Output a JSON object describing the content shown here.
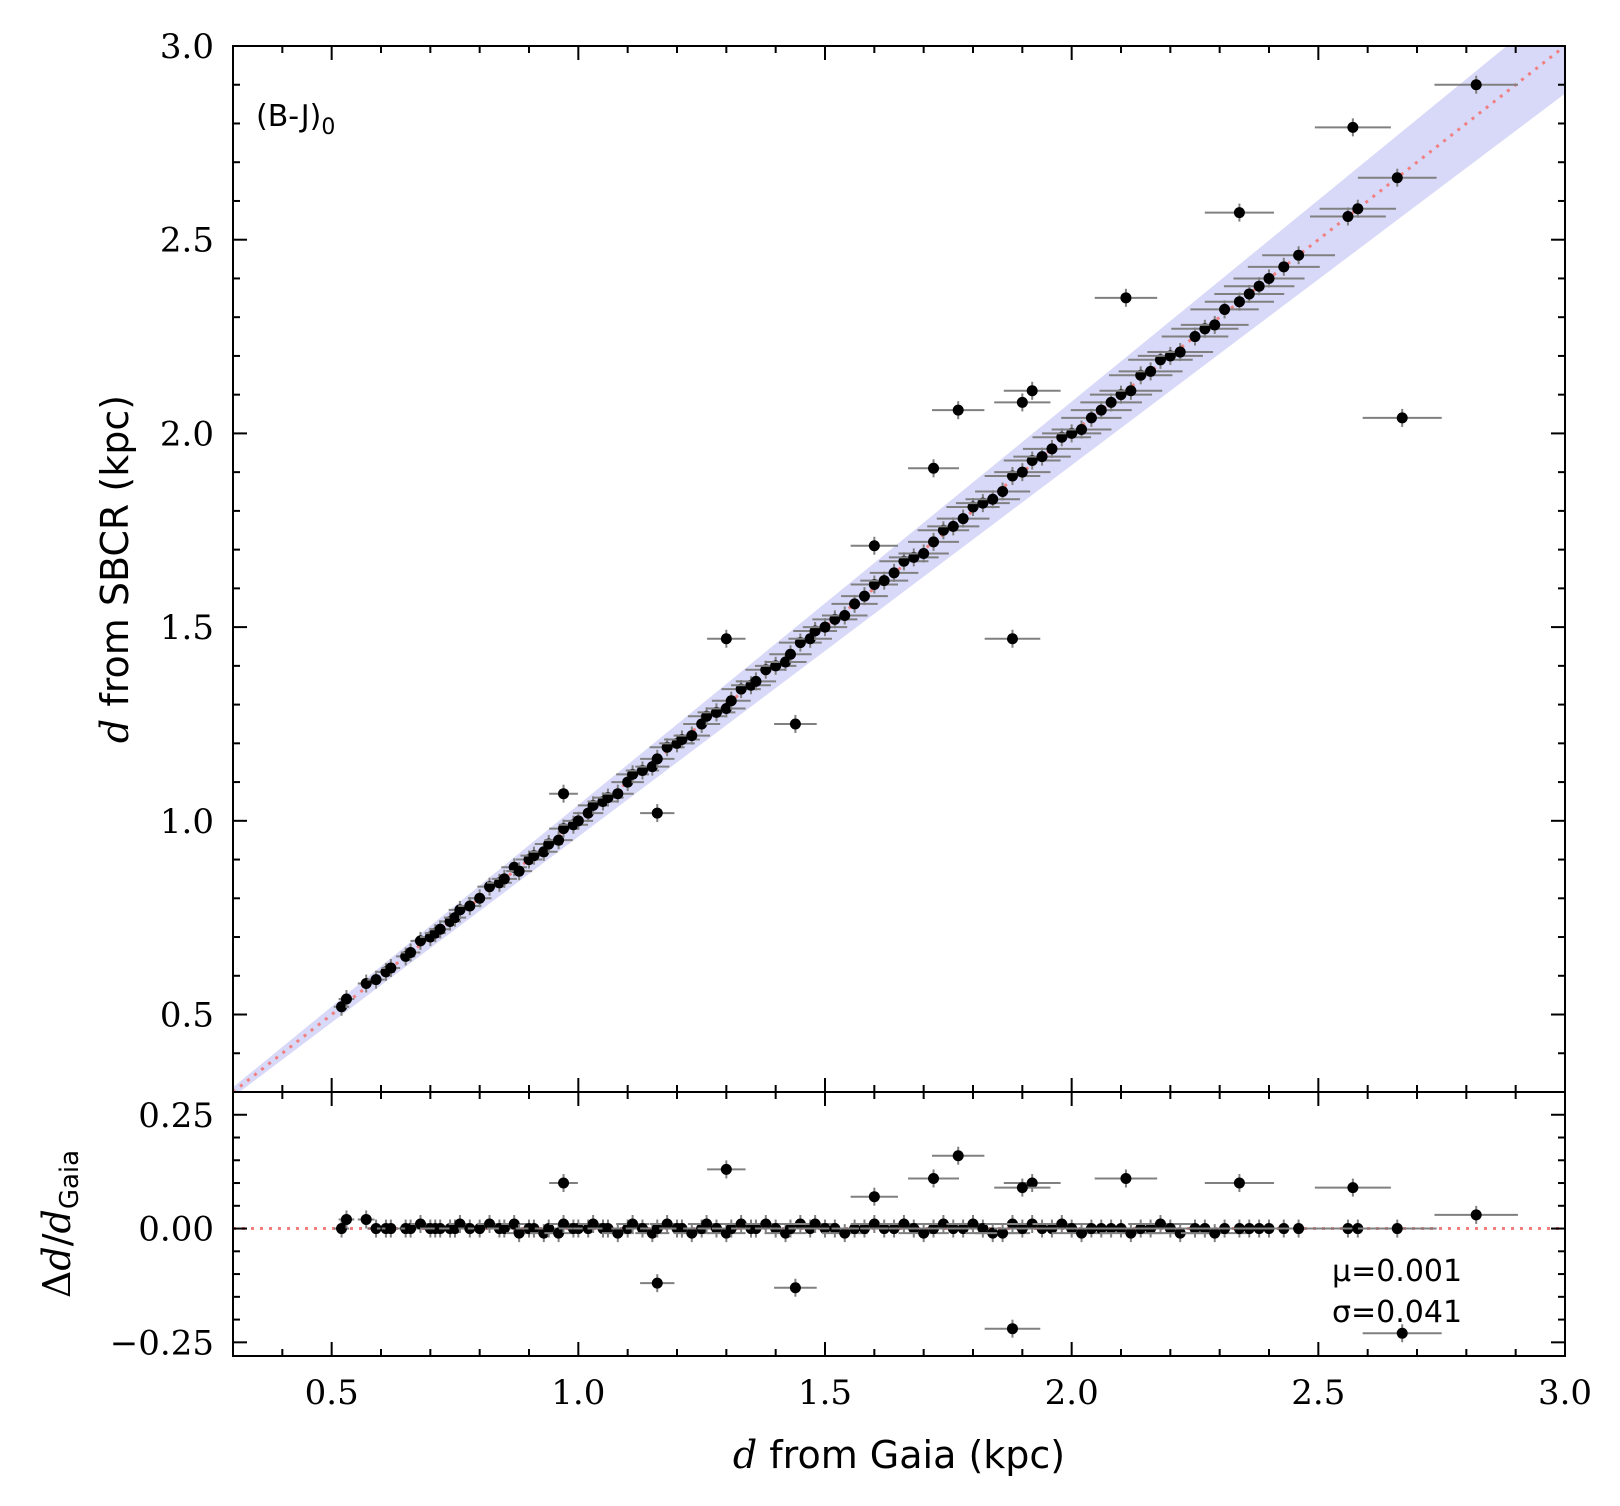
{
  "chart_data": [
    {
      "type": "scatter",
      "panel": "main",
      "annotation": "(B-J)0",
      "annotation_base": "(B-J)",
      "annotation_sub": "0",
      "xlabel": "d from Gaia (kpc)",
      "xlabel_var": "d",
      "xlabel_rest": " from Gaia (kpc)",
      "ylabel": "d from SBCR (kpc)",
      "ylabel_var": "d",
      "ylabel_rest": " from SBCR (kpc)",
      "xlim": [
        0.3,
        3.0
      ],
      "ylim": [
        0.3,
        3.0
      ],
      "xticks": [
        "0.5",
        "1.0",
        "1.5",
        "2.0",
        "2.5",
        "3.0"
      ],
      "yticks": [
        "0.5",
        "1.0",
        "1.5",
        "2.0",
        "2.5",
        "3.0"
      ],
      "reference_line": "y = x (dotted)",
      "band": "relative scatter about y = x",
      "band_fraction": 0.041,
      "colors": {
        "points": "#000000",
        "errorbars": "#808080",
        "line": "#f08080",
        "band": "#d8d8f8"
      },
      "points_template_note": "",
      "series": [
        {
          "x": [
            0.52,
            0.53,
            0.57,
            0.59,
            0.61,
            0.62,
            0.65,
            0.66,
            0.68,
            0.7,
            0.71,
            0.72,
            0.74,
            0.75,
            0.76,
            0.78,
            0.8,
            0.82,
            0.84,
            0.85,
            0.87,
            0.88,
            0.9,
            0.91,
            0.93,
            0.94,
            0.96,
            0.97,
            0.99,
            1.0,
            1.02,
            1.03,
            1.05,
            1.06,
            1.08,
            1.1,
            1.11,
            1.13,
            1.15,
            1.16,
            1.18,
            1.2,
            1.21,
            1.23,
            1.25,
            1.26,
            1.28,
            1.3,
            1.31,
            1.33,
            1.35,
            1.36,
            1.38,
            1.4,
            1.42,
            1.43,
            1.45,
            1.47,
            1.48,
            1.5,
            1.52,
            1.54,
            1.56,
            1.58,
            1.6,
            1.62,
            1.64,
            1.66,
            1.68,
            1.7,
            1.72,
            1.74,
            1.76,
            1.78,
            1.8,
            1.82,
            1.84,
            1.86,
            1.88,
            1.9,
            1.92,
            1.94,
            1.96,
            1.98,
            2.0,
            2.02,
            2.04,
            2.06,
            2.08,
            2.1,
            2.12,
            2.14,
            2.16,
            2.18,
            2.2,
            2.22,
            2.25,
            2.27,
            2.29,
            2.31,
            2.34,
            2.36,
            2.38,
            2.4,
            2.43,
            2.46,
            2.56,
            2.58,
            2.66,
            2.82,
            1.16,
            1.44,
            1.88,
            1.77,
            1.3,
            2.67,
            0.97,
            1.72,
            1.92,
            2.11,
            2.34,
            2.57,
            1.9,
            1.6
          ],
          "y": [
            0.52,
            0.54,
            0.58,
            0.59,
            0.61,
            0.62,
            0.65,
            0.66,
            0.69,
            0.7,
            0.71,
            0.72,
            0.74,
            0.75,
            0.77,
            0.78,
            0.8,
            0.83,
            0.84,
            0.85,
            0.88,
            0.87,
            0.9,
            0.91,
            0.92,
            0.94,
            0.95,
            0.98,
            0.99,
            1.0,
            1.02,
            1.04,
            1.05,
            1.06,
            1.07,
            1.1,
            1.12,
            1.13,
            1.14,
            1.16,
            1.19,
            1.2,
            1.21,
            1.22,
            1.25,
            1.27,
            1.28,
            1.29,
            1.31,
            1.34,
            1.35,
            1.36,
            1.39,
            1.4,
            1.41,
            1.43,
            1.46,
            1.47,
            1.49,
            1.5,
            1.52,
            1.53,
            1.56,
            1.58,
            1.61,
            1.62,
            1.64,
            1.67,
            1.68,
            1.69,
            1.72,
            1.75,
            1.76,
            1.78,
            1.81,
            1.82,
            1.83,
            1.85,
            1.89,
            1.9,
            1.93,
            1.94,
            1.96,
            1.99,
            2.0,
            2.01,
            2.04,
            2.06,
            2.08,
            2.1,
            2.11,
            2.15,
            2.16,
            2.19,
            2.2,
            2.21,
            2.25,
            2.27,
            2.28,
            2.32,
            2.34,
            2.36,
            2.38,
            2.4,
            2.43,
            2.46,
            2.56,
            2.58,
            2.66,
            2.9,
            1.02,
            1.25,
            1.47,
            2.06,
            1.47,
            2.04,
            1.07,
            1.91,
            2.11,
            2.35,
            2.57,
            2.79,
            2.08,
            1.71
          ]
        }
      ]
    },
    {
      "type": "scatter",
      "panel": "residual",
      "ylabel": "Δd/dGaia",
      "ylabel_delta": "Δ",
      "ylabel_var": "d",
      "ylabel_sub": "Gaia",
      "xlim": [
        0.3,
        3.0
      ],
      "ylim": [
        -0.28,
        0.3
      ],
      "yticks": [
        "0.25",
        "0.00",
        "−0.25"
      ],
      "stats": {
        "mu": "μ=0.001",
        "sigma": "σ=0.041"
      },
      "series": [
        {
          "x": [
            0.52,
            0.53,
            0.57,
            0.59,
            0.61,
            0.62,
            0.65,
            0.66,
            0.68,
            0.7,
            0.71,
            0.72,
            0.74,
            0.75,
            0.76,
            0.78,
            0.8,
            0.82,
            0.84,
            0.85,
            0.87,
            0.88,
            0.9,
            0.91,
            0.93,
            0.94,
            0.96,
            0.97,
            0.99,
            1.0,
            1.02,
            1.03,
            1.05,
            1.06,
            1.08,
            1.1,
            1.11,
            1.13,
            1.15,
            1.16,
            1.18,
            1.2,
            1.21,
            1.23,
            1.25,
            1.26,
            1.28,
            1.3,
            1.31,
            1.33,
            1.35,
            1.36,
            1.38,
            1.4,
            1.42,
            1.43,
            1.45,
            1.47,
            1.48,
            1.5,
            1.52,
            1.54,
            1.56,
            1.58,
            1.6,
            1.62,
            1.64,
            1.66,
            1.68,
            1.7,
            1.72,
            1.74,
            1.76,
            1.78,
            1.8,
            1.82,
            1.84,
            1.86,
            1.88,
            1.9,
            1.92,
            1.94,
            1.96,
            1.98,
            2.0,
            2.02,
            2.04,
            2.06,
            2.08,
            2.1,
            2.12,
            2.14,
            2.16,
            2.18,
            2.2,
            2.22,
            2.25,
            2.27,
            2.29,
            2.31,
            2.34,
            2.36,
            2.38,
            2.4,
            2.43,
            2.46,
            2.56,
            2.58,
            2.66,
            2.82,
            1.16,
            1.44,
            1.88,
            1.77,
            1.3,
            2.67,
            0.97,
            1.72,
            1.92,
            2.11,
            2.34,
            2.57,
            1.9,
            1.6
          ],
          "y": [
            0.0,
            0.02,
            0.02,
            0.0,
            0.0,
            0.0,
            0.0,
            0.0,
            0.01,
            0.0,
            0.0,
            0.0,
            0.0,
            0.0,
            0.01,
            0.0,
            0.0,
            0.01,
            0.0,
            0.0,
            0.01,
            -0.01,
            0.0,
            0.0,
            -0.01,
            0.0,
            -0.01,
            0.01,
            0.0,
            0.0,
            0.0,
            0.01,
            0.0,
            0.0,
            -0.01,
            0.0,
            0.01,
            0.0,
            -0.01,
            0.0,
            0.01,
            0.0,
            0.0,
            -0.01,
            0.0,
            0.01,
            0.0,
            -0.01,
            0.0,
            0.01,
            0.0,
            0.0,
            0.01,
            0.0,
            -0.01,
            0.0,
            0.01,
            0.0,
            0.01,
            0.0,
            0.0,
            -0.01,
            0.0,
            0.0,
            0.01,
            0.0,
            0.0,
            0.01,
            0.0,
            -0.01,
            0.0,
            0.01,
            0.0,
            0.0,
            0.01,
            0.0,
            -0.01,
            -0.01,
            0.01,
            0.0,
            0.01,
            0.0,
            0.0,
            0.01,
            0.0,
            -0.01,
            0.0,
            0.0,
            0.0,
            0.0,
            -0.01,
            0.0,
            0.0,
            0.01,
            0.0,
            -0.01,
            0.0,
            0.0,
            -0.01,
            0.0,
            0.0,
            0.0,
            0.0,
            0.0,
            0.0,
            0.0,
            0.0,
            0.0,
            0.0,
            0.03,
            -0.12,
            -0.13,
            -0.22,
            0.16,
            0.13,
            -0.23,
            0.1,
            0.11,
            0.1,
            0.11,
            0.1,
            0.09,
            0.09,
            0.07
          ]
        }
      ]
    }
  ]
}
